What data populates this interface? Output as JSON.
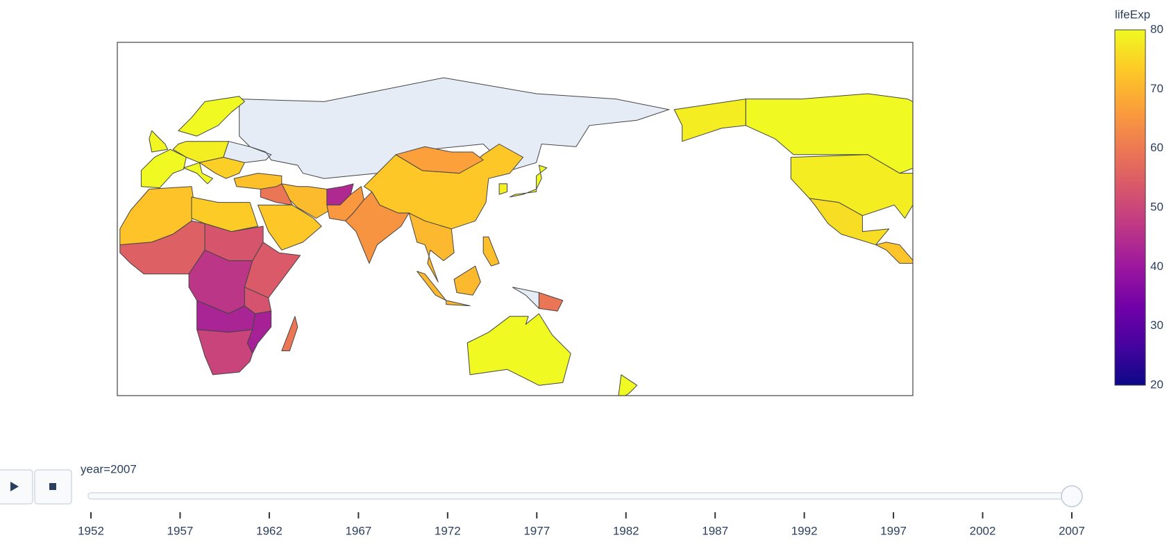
{
  "chart_data": {
    "type": "choropleth",
    "values": [
      80.65,
      78.24,
      76.2,
      72.5,
      80.6,
      80.6,
      79.4,
      78.5,
      80.5,
      74.0,
      71.8,
      72.3,
      73.5,
      72.8,
      71.0,
      59.5,
      43.8,
      65.5,
      64.7,
      73.0,
      66.8,
      70.5,
      82.6,
      78.6,
      70.7,
      71.7,
      59.5,
      81.2,
      80.2,
      55.0,
      53.0,
      46.5,
      54.0,
      52.5,
      42.7,
      42.1,
      49.3,
      59.4
    ],
    "colorscale": [
      "#0d0887",
      "#46039f",
      "#7201a8",
      "#9c179e",
      "#bd3786",
      "#d8576b",
      "#ed7953",
      "#fb9f3a",
      "#fdca26",
      "#f0f921"
    ],
    "colorbar": {
      "title": "lifeExp",
      "lim": [
        20,
        80
      ],
      "ticks": [
        20,
        30,
        40,
        50,
        60,
        70,
        80
      ]
    }
  },
  "slider": {
    "current_label": "year=2007",
    "value": 2007,
    "steps": [
      1952,
      1957,
      1962,
      1967,
      1972,
      1977,
      1982,
      1987,
      1992,
      1997,
      2002,
      2007
    ]
  }
}
